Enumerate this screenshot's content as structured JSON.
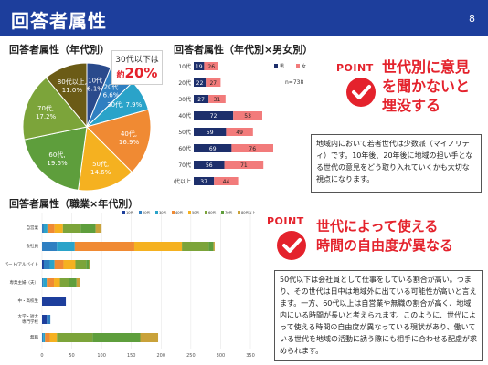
{
  "header": {
    "title": "回答者属性",
    "page_number": "8"
  },
  "sections": {
    "age_title": "回答者属性（年代別）",
    "age_gender_title": "回答者属性（年代別×男女別）",
    "occupation_title": "回答者属性（職業×年代別）"
  },
  "callout": {
    "line1": "30代以下は",
    "line2_prefix": "約",
    "line2_value": "20%"
  },
  "point1": {
    "tag": "POINT",
    "heading_lines": [
      "世代別に意見",
      "を聞かないと",
      "埋没する"
    ],
    "note": "地域内において若者世代は少数派（マイノリティ）です。10年後、20年後に地域の担い手となる世代の意見をどう取り入れていくかも大切な視点になります。"
  },
  "point2": {
    "tag": "POINT",
    "heading_lines": [
      "世代によって使える",
      "時間の自由度が異なる"
    ],
    "note": "50代以下は会社員として仕事をしている割合が高い。つまり、その世代は日中は地域外に出ている可能性が高いと言えます。一方、60代以上は自営業や無職の割合が高く、地域内にいる時間が長いと考えられます。このように、世代によって使える時間の自由度が異なっている現状があり、働いている世代を地域の活動に誘う際にも相手に合わせる配慮が求められます。"
  },
  "chart_data": [
    {
      "type": "pie",
      "title": "回答者属性（年代別）",
      "categories": [
        "10代",
        "20代",
        "30代",
        "40代",
        "50代",
        "60代",
        "70代",
        "80代以上"
      ],
      "values": [
        6.1,
        6.6,
        7.9,
        16.9,
        14.6,
        19.6,
        17.2,
        11.0
      ],
      "labels": [
        "10代\n6.1%",
        "20代\n6.6%",
        "30代, 7.9%",
        "40代,\n16.9%",
        "50代,\n14.6%",
        "60代,\n19.6%",
        "70代,\n17.2%",
        "80代以上,\n11.0%"
      ],
      "colors": [
        "#2a4a8c",
        "#2f7fc1",
        "#2aa3c9",
        "#f08a33",
        "#f5b120",
        "#5e9e3c",
        "#7ca43a",
        "#6b5b16"
      ]
    },
    {
      "type": "bar",
      "title": "回答者属性（年代別×男女別）",
      "categories": [
        "10代",
        "20代",
        "30代",
        "40代",
        "50代",
        "60代",
        "70代",
        "80代以上"
      ],
      "series": [
        {
          "name": "男",
          "values": [
            19,
            22,
            27,
            72,
            59,
            69,
            56,
            37
          ],
          "color": "#1d2f6b"
        },
        {
          "name": "女",
          "values": [
            26,
            27,
            31,
            53,
            49,
            76,
            71,
            44
          ],
          "color": "#f27b7b"
        }
      ],
      "note": "n=738",
      "legend_position": "right"
    },
    {
      "type": "bar",
      "title": "回答者属性（職業×年代別）",
      "categories": [
        "自営業",
        "会社員",
        "パート/アルバイト",
        "専業主婦（夫）",
        "中・高校生",
        "大学・短大\n専門学校",
        "無職"
      ],
      "series": [
        {
          "name": "10代",
          "values": [
            0,
            0,
            3,
            0,
            40,
            8,
            0
          ],
          "color": "#1d3e9c"
        },
        {
          "name": "20代",
          "values": [
            3,
            25,
            10,
            2,
            0,
            6,
            2
          ],
          "color": "#2f7fc1"
        },
        {
          "name": "30代",
          "values": [
            6,
            30,
            8,
            6,
            0,
            0,
            3
          ],
          "color": "#2aa3c9"
        },
        {
          "name": "40代",
          "values": [
            12,
            100,
            15,
            12,
            0,
            0,
            8
          ],
          "color": "#f08a33"
        },
        {
          "name": "50代",
          "values": [
            14,
            80,
            20,
            10,
            0,
            0,
            12
          ],
          "color": "#f5b120"
        },
        {
          "name": "60代",
          "values": [
            30,
            45,
            18,
            16,
            0,
            0,
            60
          ],
          "color": "#7ca43a"
        },
        {
          "name": "70代",
          "values": [
            25,
            8,
            5,
            12,
            0,
            0,
            80
          ],
          "color": "#5e9e3c"
        },
        {
          "name": "80代以上",
          "values": [
            10,
            2,
            1,
            6,
            0,
            0,
            30
          ],
          "color": "#c9a23a"
        }
      ],
      "xlim": [
        0,
        350
      ],
      "xticks": [
        "0",
        "50",
        "100",
        "150",
        "200",
        "250",
        "300",
        "350"
      ],
      "legend_position": "top"
    }
  ]
}
